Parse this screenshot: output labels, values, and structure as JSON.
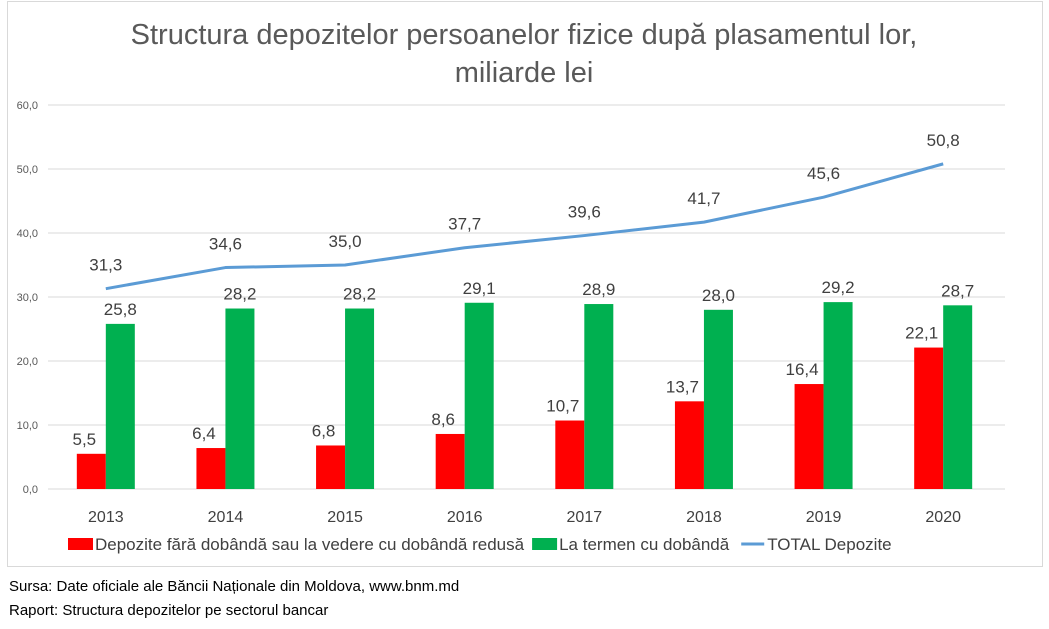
{
  "chart_data": {
    "type": "bar",
    "title_lines": [
      "Structura depozitelor persoanelor fizice după plasamentul lor,",
      "miliarde lei"
    ],
    "categories": [
      "2013",
      "2014",
      "2015",
      "2016",
      "2017",
      "2018",
      "2019",
      "2020"
    ],
    "ylim": [
      0,
      60
    ],
    "yticks": [
      0,
      10,
      20,
      30,
      40,
      50,
      60
    ],
    "ytick_labels": [
      "0,0",
      "10,0",
      "20,0",
      "30,0",
      "40,0",
      "50,0",
      "60,0"
    ],
    "grid": true,
    "legend_position": "bottom",
    "series": [
      {
        "name": "Depozite fără dobândă sau la vedere cu dobândă redusă",
        "type": "bar",
        "color": "#ff0000",
        "values": [
          5.5,
          6.4,
          6.8,
          8.6,
          10.7,
          13.7,
          16.4,
          22.1
        ],
        "labels": [
          "5,5",
          "6,4",
          "6,8",
          "8,6",
          "10,7",
          "13,7",
          "16,4",
          "22,1"
        ]
      },
      {
        "name": "La termen cu dobândă",
        "type": "bar",
        "color": "#00b050",
        "values": [
          25.8,
          28.2,
          28.2,
          29.1,
          28.9,
          28.0,
          29.2,
          28.7
        ],
        "labels": [
          "25,8",
          "28,2",
          "28,2",
          "29,1",
          "28,9",
          "28,0",
          "29,2",
          "28,7"
        ]
      },
      {
        "name": "TOTAL Depozite",
        "type": "line",
        "color": "#5b9bd5",
        "values": [
          31.3,
          34.6,
          35.0,
          37.7,
          39.6,
          41.7,
          45.6,
          50.8
        ],
        "labels": [
          "31,3",
          "34,6",
          "35,0",
          "37,7",
          "39,6",
          "41,7",
          "45,6",
          "50,8"
        ]
      }
    ],
    "xlabel": "",
    "ylabel": ""
  },
  "footer": {
    "source": "Sursa: Date oficiale ale Băncii Naționale din Moldova, www.bnm.md",
    "report": "Raport: Structura depozitelor pe sectorul bancar"
  }
}
